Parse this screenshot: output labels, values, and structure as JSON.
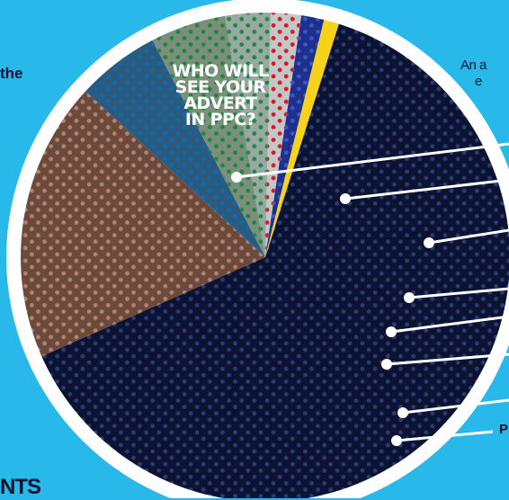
{
  "chart_data": {
    "type": "pie",
    "title": "WHO WILL SEE YOUR ADVERT IN PPC?",
    "title_lines": [
      "WHO WILL",
      "SEE YOUR",
      "ADVERT",
      "IN PPC?"
    ],
    "slices": [
      {
        "value": 63.5,
        "color": "#0c1331",
        "dot_color": "#2a3a78"
      },
      {
        "value": 18.5,
        "color": "#6b4a3c",
        "dot_color": "#b08270"
      },
      {
        "value": 5.5,
        "color": "#2c5a7c",
        "dot_color": "#0a6bb3"
      },
      {
        "value": 5.0,
        "color": "#7c8f7c",
        "dot_color": "#1a8a3a"
      },
      {
        "value": 3.0,
        "color": "#9aa8a4",
        "dot_color": "#1e8a3c"
      },
      {
        "value": 2.0,
        "color": "#c3c7c8",
        "dot_color": "#d81920"
      },
      {
        "value": 1.5,
        "color": "#1e2f8c",
        "dot_color": "#3a56c8"
      },
      {
        "value": 1.0,
        "color": "#f7d21a",
        "dot_color": "#f7d21a"
      }
    ]
  },
  "fragments": {
    "left": "the",
    "bottom": "NTS",
    "right_1": "An a",
    "right_2": "e",
    "right_3": "P"
  },
  "colors": {
    "background": "#29B8EA",
    "ring": "#ffffff",
    "leader": "#ffffff"
  }
}
